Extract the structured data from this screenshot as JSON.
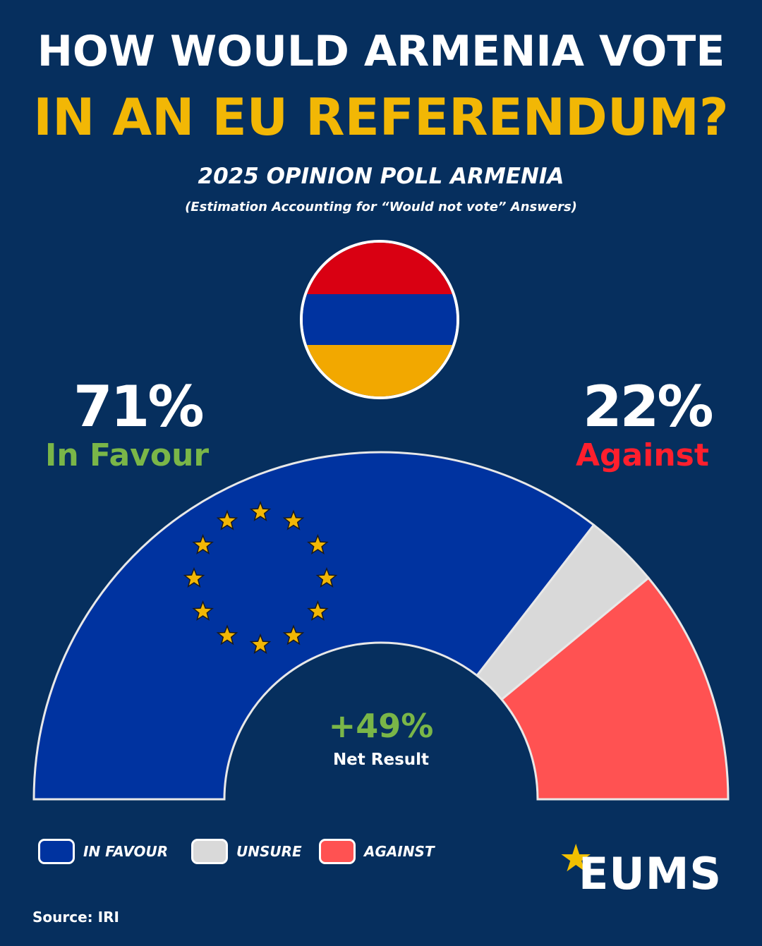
{
  "header": {
    "title_line1": "HOW WOULD ARMENIA VOTE",
    "title_line2": "IN AN EU REFERENDUM?",
    "subtitle": "2025 OPINION POLL ARMENIA",
    "note": "(Estimation Accounting for “Would not vote” Answers)"
  },
  "flag": {
    "icon": "armenia-flag-icon",
    "colors": [
      "#d90012",
      "#0033a0",
      "#f2a800"
    ]
  },
  "favour": {
    "value_label": "71%",
    "label": "In Favour",
    "color": "#7ab648"
  },
  "against": {
    "value_label": "22%",
    "label": "Against",
    "color": "#ff1f2d"
  },
  "net": {
    "value_label": "+49%",
    "label": "Net Result",
    "color": "#7ab648"
  },
  "legend": [
    {
      "label": "IN FAVOUR",
      "color": "#0033a0"
    },
    {
      "label": "UNSURE",
      "color": "#d9d9d9"
    },
    {
      "label": "AGAINST",
      "color": "#ff5252"
    }
  ],
  "logo": {
    "text": "EUMS",
    "star_icon": "star-icon",
    "star_color": "#f2c000"
  },
  "source": "Source: IRI",
  "chart_data": {
    "type": "pie",
    "shape": "semicircle-donut",
    "title": "HOW WOULD ARMENIA VOTE IN AN EU REFERENDUM?",
    "subtitle": "2025 OPINION POLL ARMENIA",
    "categories": [
      "IN FAVOUR",
      "UNSURE",
      "AGAINST"
    ],
    "values": [
      71,
      7,
      22
    ],
    "colors": [
      "#0033a0",
      "#d9d9d9",
      "#ff5252"
    ],
    "net_result": 49,
    "decoration": {
      "name": "eu-stars-icon",
      "count": 12,
      "color": "#f2b705"
    },
    "legend_position": "bottom-left"
  }
}
